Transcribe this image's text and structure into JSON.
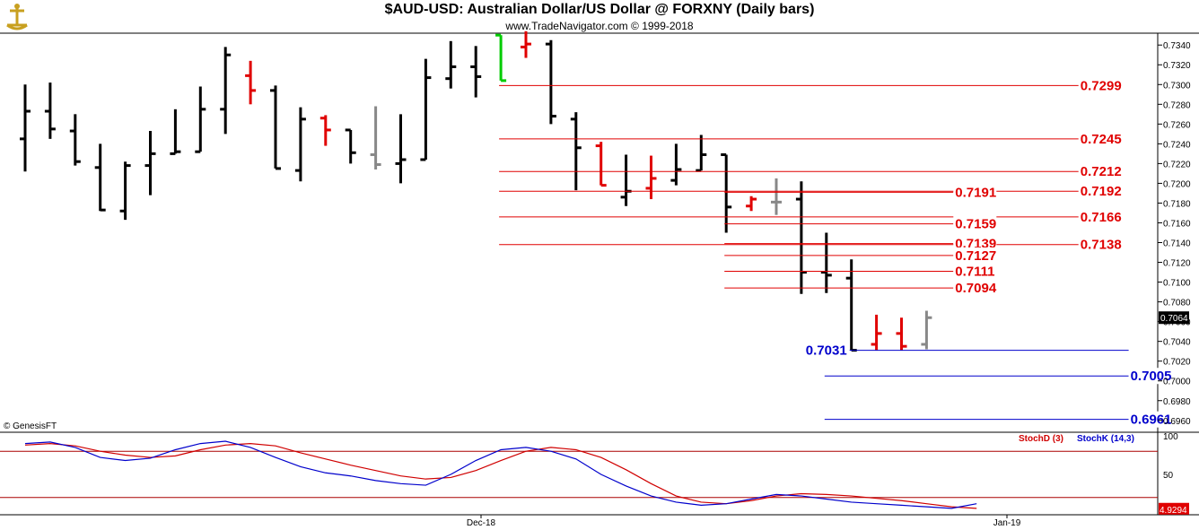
{
  "header": {
    "title": "$AUD-USD:  Australian Dollar/US Dollar @ FORXNY  (Daily bars)",
    "subtitle": "www.TradeNavigator.com © 1999-2018",
    "copyright": "© GenesisFT"
  },
  "colors": {
    "up": "#000000",
    "down": "#e00000",
    "neutral": "#888888",
    "green": "#00cc00",
    "resistance": "#e00000",
    "support": "#0000cc"
  },
  "chart_data": [
    {
      "type": "ohlc",
      "title": "$AUD-USD:  Australian Dollar/US Dollar @ FORXNY  (Daily bars)",
      "ylim": [
        0.6948,
        0.7352
      ],
      "yticks": [
        "0.7340",
        "0.7320",
        "0.7300",
        "0.7280",
        "0.7260",
        "0.7240",
        "0.7220",
        "0.7200",
        "0.7180",
        "0.7160",
        "0.7140",
        "0.7120",
        "0.7100",
        "0.7080",
        "0.7060",
        "0.7040",
        "0.7020",
        "0.7000",
        "0.6980",
        "0.6960"
      ],
      "xticks": [
        "Dec-18",
        "Jan-19"
      ],
      "last_price": "0.7064",
      "bars": [
        {
          "o": 0.7245,
          "h": 0.73,
          "l": 0.7212,
          "c": 0.7273,
          "col": "up"
        },
        {
          "o": 0.7273,
          "h": 0.7302,
          "l": 0.7245,
          "c": 0.7255,
          "col": "up"
        },
        {
          "o": 0.7253,
          "h": 0.727,
          "l": 0.7218,
          "c": 0.7222,
          "col": "up"
        },
        {
          "o": 0.7216,
          "h": 0.724,
          "l": 0.7172,
          "c": 0.7173,
          "col": "up"
        },
        {
          "o": 0.7172,
          "h": 0.7222,
          "l": 0.7163,
          "c": 0.7218,
          "col": "up"
        },
        {
          "o": 0.7218,
          "h": 0.7253,
          "l": 0.7188,
          "c": 0.723,
          "col": "up"
        },
        {
          "o": 0.723,
          "h": 0.7275,
          "l": 0.723,
          "c": 0.7232,
          "col": "up"
        },
        {
          "o": 0.7232,
          "h": 0.7298,
          "l": 0.7232,
          "c": 0.7275,
          "col": "up"
        },
        {
          "o": 0.7275,
          "h": 0.7338,
          "l": 0.725,
          "c": 0.733,
          "col": "up"
        },
        {
          "o": 0.7309,
          "h": 0.7324,
          "l": 0.728,
          "c": 0.7294,
          "col": "down"
        },
        {
          "o": 0.7294,
          "h": 0.7299,
          "l": 0.7215,
          "c": 0.7215,
          "col": "up"
        },
        {
          "o": 0.7213,
          "h": 0.7277,
          "l": 0.7202,
          "c": 0.7265,
          "col": "up"
        },
        {
          "o": 0.7266,
          "h": 0.7269,
          "l": 0.7238,
          "c": 0.7254,
          "col": "down"
        },
        {
          "o": 0.7254,
          "h": 0.7254,
          "l": 0.722,
          "c": 0.7231,
          "col": "up"
        },
        {
          "o": 0.7229,
          "h": 0.7278,
          "l": 0.7214,
          "c": 0.7219,
          "col": "neutral"
        },
        {
          "o": 0.722,
          "h": 0.727,
          "l": 0.72,
          "c": 0.7224,
          "col": "up"
        },
        {
          "o": 0.7224,
          "h": 0.7326,
          "l": 0.7224,
          "c": 0.7307,
          "col": "up"
        },
        {
          "o": 0.7306,
          "h": 0.7344,
          "l": 0.7296,
          "c": 0.7318,
          "col": "up"
        },
        {
          "o": 0.7318,
          "h": 0.7339,
          "l": 0.7287,
          "c": 0.7308,
          "col": "up"
        },
        {
          "o": 0.735,
          "h": 0.735,
          "l": 0.7304,
          "c": 0.7304,
          "col": "green"
        },
        {
          "o": 0.7338,
          "h": 0.7354,
          "l": 0.7327,
          "c": 0.7341,
          "col": "down"
        },
        {
          "o": 0.7341,
          "h": 0.7345,
          "l": 0.726,
          "c": 0.7268,
          "col": "up"
        },
        {
          "o": 0.7265,
          "h": 0.7272,
          "l": 0.7193,
          "c": 0.7236,
          "col": "up"
        },
        {
          "o": 0.7238,
          "h": 0.7242,
          "l": 0.7198,
          "c": 0.7198,
          "col": "down"
        },
        {
          "o": 0.7186,
          "h": 0.7229,
          "l": 0.7177,
          "c": 0.7192,
          "col": "up"
        },
        {
          "o": 0.7195,
          "h": 0.7228,
          "l": 0.7184,
          "c": 0.7205,
          "col": "down"
        },
        {
          "o": 0.7203,
          "h": 0.724,
          "l": 0.7198,
          "c": 0.7214,
          "col": "up"
        },
        {
          "o": 0.7213,
          "h": 0.7249,
          "l": 0.7213,
          "c": 0.7229,
          "col": "up"
        },
        {
          "o": 0.7229,
          "h": 0.7229,
          "l": 0.715,
          "c": 0.7176,
          "col": "up"
        },
        {
          "o": 0.7177,
          "h": 0.7187,
          "l": 0.7172,
          "c": 0.7184,
          "col": "down"
        },
        {
          "o": 0.7181,
          "h": 0.7205,
          "l": 0.7168,
          "c": 0.7181,
          "col": "neutral"
        },
        {
          "o": 0.7184,
          "h": 0.7202,
          "l": 0.7088,
          "c": 0.711,
          "col": "up"
        },
        {
          "o": 0.711,
          "h": 0.715,
          "l": 0.7089,
          "c": 0.7107,
          "col": "up"
        },
        {
          "o": 0.7104,
          "h": 0.7123,
          "l": 0.7031,
          "c": 0.7031,
          "col": "up"
        },
        {
          "o": 0.7037,
          "h": 0.7067,
          "l": 0.7031,
          "c": 0.7048,
          "col": "down"
        },
        {
          "o": 0.7048,
          "h": 0.7064,
          "l": 0.7031,
          "c": 0.7035,
          "col": "down"
        },
        {
          "o": 0.7037,
          "h": 0.7071,
          "l": 0.7032,
          "c": 0.7064,
          "col": "neutral"
        }
      ],
      "levels": [
        {
          "value": 0.7299,
          "label": "0.7299",
          "kind": "resistance",
          "from_bar": 19,
          "to_bar": 42
        },
        {
          "value": 0.7245,
          "label": "0.7245",
          "kind": "resistance",
          "from_bar": 19,
          "to_bar": 42
        },
        {
          "value": 0.7212,
          "label": "0.7212",
          "kind": "resistance",
          "from_bar": 19,
          "to_bar": 42
        },
        {
          "value": 0.7192,
          "label": "0.7192",
          "kind": "resistance",
          "from_bar": 19,
          "to_bar": 42
        },
        {
          "value": 0.7166,
          "label": "0.7166",
          "kind": "resistance",
          "from_bar": 19,
          "to_bar": 42
        },
        {
          "value": 0.7138,
          "label": "0.7138",
          "kind": "resistance",
          "from_bar": 19,
          "to_bar": 42
        },
        {
          "value": 0.7191,
          "label": "0.7191",
          "kind": "resistance",
          "from_bar": 28,
          "to_bar": 37
        },
        {
          "value": 0.7159,
          "label": "0.7159",
          "kind": "resistance",
          "from_bar": 28,
          "to_bar": 37
        },
        {
          "value": 0.7139,
          "label": "0.7139",
          "kind": "resistance",
          "from_bar": 28,
          "to_bar": 37
        },
        {
          "value": 0.7127,
          "label": "0.7127",
          "kind": "resistance",
          "from_bar": 28,
          "to_bar": 37
        },
        {
          "value": 0.7111,
          "label": "0.7111",
          "kind": "resistance",
          "from_bar": 28,
          "to_bar": 37
        },
        {
          "value": 0.7094,
          "label": "0.7094",
          "kind": "resistance",
          "from_bar": 28,
          "to_bar": 37
        },
        {
          "value": 0.7031,
          "label": "0.7031",
          "kind": "support",
          "from_bar": 33,
          "to_bar": 44,
          "label_side": "left"
        },
        {
          "value": 0.7005,
          "label": "0.7005",
          "kind": "support",
          "from_bar": 32,
          "to_bar": 44
        },
        {
          "value": 0.6961,
          "label": "0.6961",
          "kind": "support",
          "from_bar": 32,
          "to_bar": 44
        }
      ]
    },
    {
      "type": "line",
      "title": "",
      "ylim": [
        0,
        100
      ],
      "yticks": [
        "100",
        "50"
      ],
      "overbought": 80,
      "oversold": 20,
      "last_value": "4.9294",
      "series": [
        {
          "name": "StochD (3)",
          "color": "#d00000",
          "values": [
            88,
            90,
            87,
            80,
            75,
            72,
            74,
            82,
            88,
            90,
            87,
            78,
            70,
            62,
            55,
            48,
            44,
            46,
            55,
            68,
            80,
            85,
            82,
            72,
            56,
            38,
            22,
            14,
            12,
            16,
            22,
            25,
            24,
            22,
            19,
            16,
            12,
            8,
            6
          ]
        },
        {
          "name": "StochK (14,3)",
          "color": "#0000cc",
          "values": [
            90,
            92,
            85,
            72,
            68,
            71,
            82,
            90,
            93,
            85,
            72,
            60,
            52,
            48,
            42,
            38,
            36,
            50,
            68,
            82,
            85,
            80,
            70,
            50,
            35,
            22,
            14,
            10,
            12,
            18,
            24,
            22,
            18,
            14,
            12,
            10,
            8,
            6,
            12
          ]
        }
      ]
    }
  ]
}
